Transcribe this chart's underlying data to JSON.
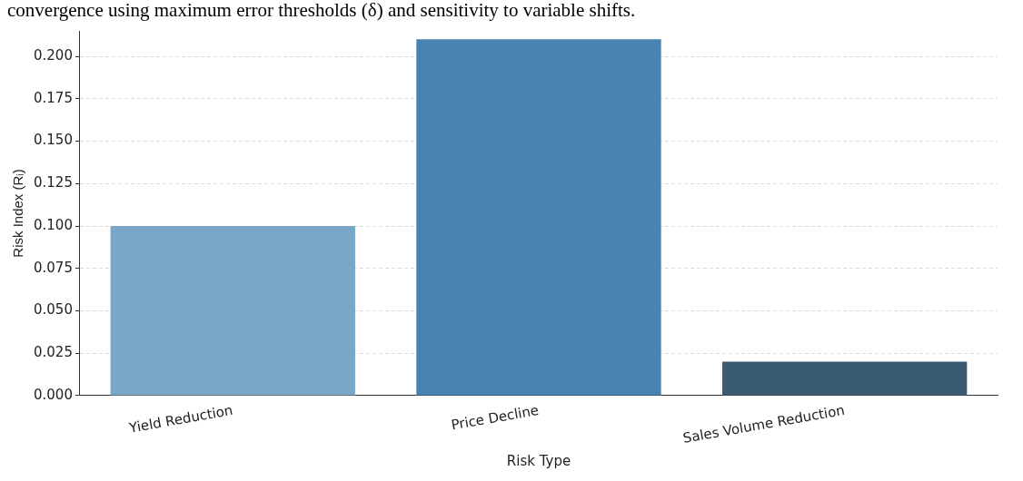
{
  "chart_data": {
    "type": "bar",
    "xlabel": "Risk Type",
    "ylabel": "Risk Index (Rᵢ)",
    "annotations": [
      "convergence using maximum error thresholds (δ) and sensitivity to variable shifts."
    ],
    "categories": [
      "Yield Reduction",
      "Price Decline",
      "Sales Volume Reduction"
    ],
    "values": [
      0.1,
      0.21,
      0.02
    ],
    "colors": [
      "#7aa7c7",
      "#4883b1",
      "#3b5b73"
    ],
    "ylim": [
      0,
      0.215
    ],
    "yticks": [
      {
        "value": 0,
        "label": "0.000"
      },
      {
        "value": 0.025,
        "label": "0.025"
      },
      {
        "value": 0.05,
        "label": "0.050"
      },
      {
        "value": 0.075,
        "label": "0.075"
      },
      {
        "value": 0.1,
        "label": "0.100"
      },
      {
        "value": 0.125,
        "label": "0.125"
      },
      {
        "value": 0.15,
        "label": "0.150"
      },
      {
        "value": 0.175,
        "label": "0.175"
      },
      {
        "value": 0.2,
        "label": "0.200"
      }
    ],
    "grid": "y",
    "legend": false
  }
}
